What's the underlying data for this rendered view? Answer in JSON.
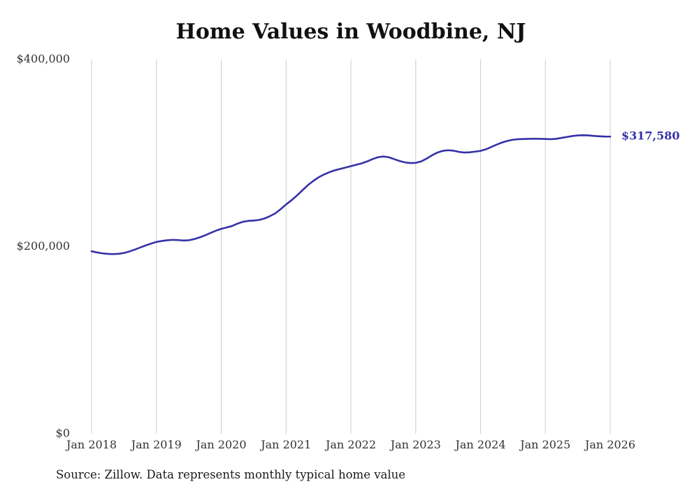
{
  "chart": {
    "title": "Home Values in Woodbine, NJ",
    "source": "Source: Zillow. Data represents monthly typical home value",
    "end_label": "$317,580"
  },
  "chart_data": {
    "type": "line",
    "title": "Home Values in Woodbine, NJ",
    "x_start": "2018-01",
    "interval": "month",
    "x_tick_labels": [
      "Jan 2018",
      "Jan 2019",
      "Jan 2020",
      "Jan 2021",
      "Jan 2022",
      "Jan 2023",
      "Jan 2024",
      "Jan 2025",
      "Jan 2026"
    ],
    "y_ticks": [
      {
        "value": 0,
        "label": "$0"
      },
      {
        "value": 200000,
        "label": "$200,000"
      },
      {
        "value": 400000,
        "label": "$400,000"
      }
    ],
    "ylim": [
      0,
      400000
    ],
    "grid": "vertical-only",
    "legend": "none",
    "line_color": "#3631a8",
    "axis_text_color": "#333333",
    "end_value": 317580,
    "end_value_label": "$317,580",
    "source": "Source: Zillow. Data represents monthly typical home value",
    "series": [
      {
        "name": "Typical home value",
        "values": [
          195000,
          193800,
          192800,
          192200,
          192000,
          192300,
          193200,
          194800,
          196800,
          199000,
          201200,
          203200,
          205000,
          206000,
          206800,
          207200,
          207000,
          206500,
          206800,
          208000,
          209800,
          212000,
          214500,
          217000,
          219000,
          220500,
          222000,
          224500,
          226500,
          227500,
          227800,
          228500,
          230000,
          232500,
          235500,
          240000,
          245000,
          249500,
          254500,
          260000,
          265500,
          270000,
          274000,
          277000,
          279500,
          281500,
          283000,
          284500,
          286000,
          287500,
          289000,
          291000,
          293500,
          295500,
          296300,
          295500,
          293500,
          291500,
          290000,
          289300,
          289500,
          291000,
          294000,
          297500,
          300500,
          302300,
          303000,
          302500,
          301200,
          300500,
          300800,
          301500,
          302300,
          304000,
          306500,
          309000,
          311300,
          313000,
          314200,
          314800,
          315000,
          315200,
          315300,
          315200,
          315000,
          314800,
          315200,
          316200,
          317200,
          318200,
          318800,
          319000,
          318800,
          318300,
          317900,
          317600,
          317580
        ]
      }
    ]
  }
}
